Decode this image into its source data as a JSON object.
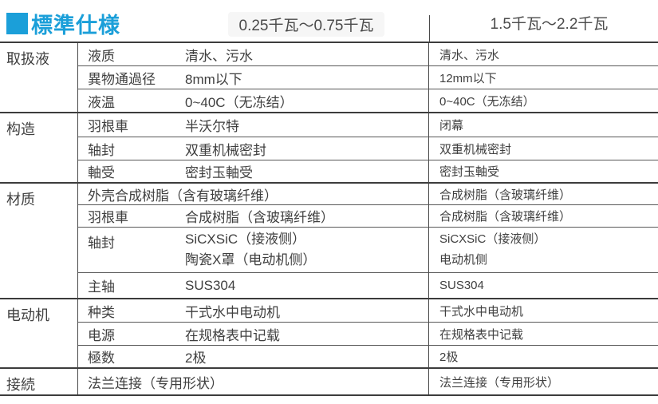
{
  "title": {
    "text": "標準仕様"
  },
  "colors": {
    "accent": "#1b9fd9",
    "line": "#4a4a4a",
    "text": "#3f3f3f"
  },
  "columns": [
    {
      "label": "0.25千瓦～0.75千瓦"
    },
    {
      "label": "1.5千瓦～2.2千瓦"
    }
  ],
  "groups": [
    {
      "category": "取扱液",
      "rows": [
        {
          "label": "液质",
          "left": "清水、污水",
          "right": "清水、污水"
        },
        {
          "label": "異物通過径",
          "left": "8mm以下",
          "right": "12mm以下"
        },
        {
          "label": "液温",
          "left": "0~40C（无冻结）",
          "right": "0~40C（无冻结）"
        }
      ]
    },
    {
      "category": "构造",
      "rows": [
        {
          "label": "羽根車",
          "left": "半沃尔特",
          "right": "闭幕"
        },
        {
          "label": "轴封",
          "left": "双重机械密封",
          "right": "双重机械密封"
        },
        {
          "label": "軸受",
          "left": "密封玉軸受",
          "right": "密封玉軸受"
        }
      ]
    },
    {
      "category": "材质",
      "rows": [
        {
          "label": "",
          "left": "外壳合成树脂（含有玻璃纤维）",
          "right": "合成树脂（含玻璃纤维）"
        },
        {
          "label": "羽根車",
          "left": "合成树脂（含玻璃纤维）",
          "right": "合成树脂（含玻璃纤维）"
        },
        {
          "label": "轴封",
          "left_lines": [
            "SiCXSiC（接液侧）",
            "陶瓷X罩（电动机侧）"
          ],
          "right_lines": [
            "SiCXSiC（接液侧）",
            "电动机侧"
          ]
        },
        {
          "label": "主轴",
          "left": "SUS304",
          "right": "SUS304"
        }
      ]
    },
    {
      "category": "电动机",
      "rows": [
        {
          "label": "种类",
          "left": "干式水中电动机",
          "right": "干式水中电动机"
        },
        {
          "label": "电源",
          "left": "在规格表中记载",
          "right": "在规格表中记载"
        },
        {
          "label": "極数",
          "left": "2极",
          "right": "2极"
        }
      ]
    },
    {
      "category": "接続",
      "rows": [
        {
          "label": "",
          "left": "法兰连接（专用形状）",
          "right": "法兰连接（专用形状）"
        }
      ]
    }
  ]
}
